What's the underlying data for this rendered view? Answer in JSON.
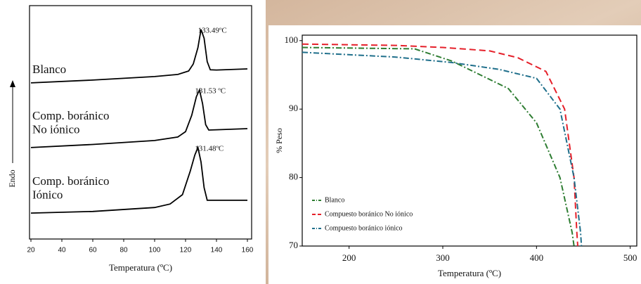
{
  "chart_data": [
    {
      "type": "line",
      "xlabel": "Temperatura (ºC)",
      "ylabel": "Endo",
      "xlim": [
        20,
        160
      ],
      "ylim": [
        0,
        100
      ],
      "xticks": [
        20,
        40,
        60,
        80,
        100,
        120,
        140,
        160
      ],
      "series": [
        {
          "name": "Blanco",
          "color": "#000000",
          "peak": 133.49,
          "peak_label": "133.49ºC",
          "x": [
            20,
            60,
            100,
            115,
            122,
            125,
            128,
            130,
            132,
            134,
            136,
            140,
            160
          ],
          "values": [
            66.9,
            68.1,
            69.6,
            70.5,
            72,
            75,
            82,
            89.8,
            86,
            76,
            72.5,
            72.4,
            72.9
          ]
        },
        {
          "name": "Comp. boránico\nNo iónico",
          "color": "#000000",
          "peak": 131.53,
          "peak_label": "131.53 ºC",
          "x": [
            20,
            60,
            100,
            115,
            120,
            124,
            127,
            129,
            131,
            133,
            135,
            140,
            160
          ],
          "values": [
            39.2,
            40.5,
            42.2,
            43.7,
            46,
            53,
            61,
            63.9,
            58,
            49,
            46.7,
            46.8,
            47.3
          ]
        },
        {
          "name": "Comp. boránico\nIónico",
          "color": "#000000",
          "peak": 131.48,
          "peak_label": "131.48ºC",
          "x": [
            20,
            60,
            100,
            110,
            118,
            123,
            126,
            128,
            130,
            132,
            134,
            140,
            160
          ],
          "values": [
            11.1,
            11.8,
            13.5,
            15,
            19,
            29,
            36,
            39.2,
            33,
            22,
            16.6,
            16.6,
            16.6
          ]
        }
      ]
    },
    {
      "type": "line",
      "xlabel": "Temperatura (ºC)",
      "ylabel": "% Peso",
      "xlim": [
        150,
        507
      ],
      "ylim": [
        70,
        100.8
      ],
      "xticks": [
        200,
        300,
        400,
        500
      ],
      "yticks": [
        70,
        80,
        90,
        100
      ],
      "legend": "lower left",
      "series": [
        {
          "name": "Blanco",
          "color": "#2e7d32",
          "dash": "dashdot",
          "x": [
            150,
            270,
            310,
            370,
            400,
            425,
            438,
            440
          ],
          "values": [
            99,
            98.8,
            97,
            93,
            88,
            80,
            72,
            70
          ]
        },
        {
          "name": "Compuesto boránico No iónico",
          "color": "#e5202a",
          "dash": "dashed",
          "x": [
            150,
            250,
            300,
            350,
            380,
            410,
            430,
            440,
            443,
            444
          ],
          "values": [
            99.5,
            99.3,
            99,
            98.5,
            97.5,
            95.5,
            90,
            80,
            72,
            70
          ]
        },
        {
          "name": "Compuesto boránico iónico",
          "color": "#1f6f8b",
          "dash": "dashdot",
          "x": [
            150,
            250,
            310,
            360,
            400,
            425,
            440,
            447,
            448
          ],
          "values": [
            98.3,
            97.6,
            96.8,
            95.8,
            94.5,
            90,
            80,
            72,
            70
          ]
        }
      ]
    }
  ]
}
